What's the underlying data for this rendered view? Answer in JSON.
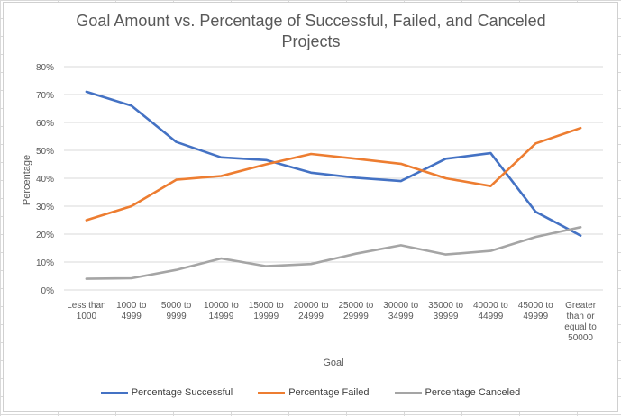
{
  "chart_data": {
    "type": "line",
    "title": "Goal Amount vs. Percentage of Successful, Failed, and Canceled Projects",
    "xlabel": "Goal",
    "ylabel": "Percentage",
    "ylim": [
      0,
      0.8
    ],
    "yticks": [
      "0%",
      "10%",
      "20%",
      "30%",
      "40%",
      "50%",
      "60%",
      "70%",
      "80%"
    ],
    "grid": true,
    "legend_position": "bottom",
    "categories": [
      "Less than 1000",
      "1000 to 4999",
      "5000 to 9999",
      "10000 to 14999",
      "15000 to 19999",
      "20000 to 24999",
      "25000 to 29999",
      "30000 to 34999",
      "35000 to 39999",
      "40000 to 44999",
      "45000 to 49999",
      "Greater than or equal to 50000"
    ],
    "series": [
      {
        "name": "Percentage Successful",
        "color": "#4472c4",
        "values": [
          0.71,
          0.66,
          0.53,
          0.475,
          0.465,
          0.42,
          0.402,
          0.39,
          0.47,
          0.49,
          0.28,
          0.195
        ]
      },
      {
        "name": "Percentage Failed",
        "color": "#ed7d31",
        "values": [
          0.25,
          0.3,
          0.395,
          0.408,
          0.45,
          0.487,
          0.47,
          0.452,
          0.4,
          0.372,
          0.525,
          0.58
        ]
      },
      {
        "name": "Percentage Canceled",
        "color": "#a5a5a5",
        "values": [
          0.04,
          0.042,
          0.072,
          0.113,
          0.085,
          0.093,
          0.13,
          0.16,
          0.127,
          0.14,
          0.19,
          0.225
        ]
      }
    ]
  }
}
